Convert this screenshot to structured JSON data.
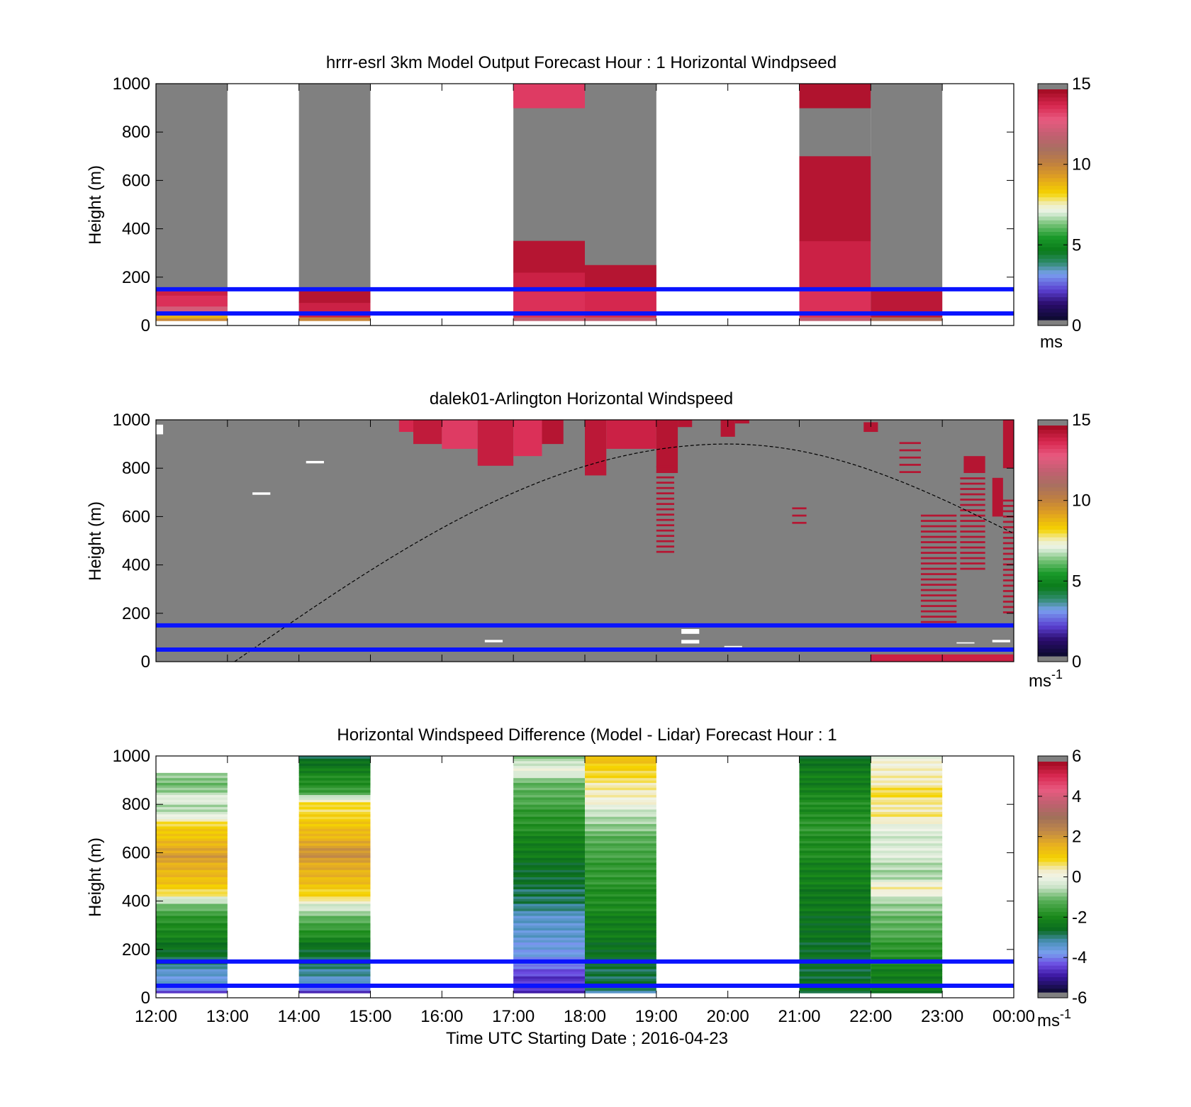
{
  "chart_data": [
    {
      "type": "heatmap",
      "title": "hrrr-esrl 3km Model Output   Forecast Hour : 1 Horizontal Windpseed",
      "xlabel": "",
      "ylabel": "Height (m)",
      "xlim": [
        "12:00",
        "00:00"
      ],
      "ylim": [
        0,
        1000
      ],
      "yticks": [
        0,
        200,
        400,
        600,
        800,
        1000
      ],
      "colorbar": {
        "min": 0,
        "max": 15,
        "ticks": [
          0,
          5,
          10,
          15
        ],
        "unit": "ms",
        "unit_sup": ""
      },
      "reference_lines_m": [
        50,
        150
      ],
      "reference_line_color": "#0a14ff",
      "columns": [
        {
          "time": "12:00-13:00",
          "bands": [
            {
              "from": 0,
              "to": 20,
              "value": 0
            },
            {
              "from": 20,
              "to": 30,
              "value": 10
            },
            {
              "from": 30,
              "to": 50,
              "value": 9
            },
            {
              "from": 50,
              "to": 80,
              "value": 12.5
            },
            {
              "from": 80,
              "to": 125,
              "value": 13.8
            },
            {
              "from": 125,
              "to": 150,
              "value": 14.2
            }
          ]
        },
        {
          "time": "14:00-15:00",
          "bands": [
            {
              "from": 0,
              "to": 20,
              "value": 0
            },
            {
              "from": 20,
              "to": 35,
              "value": 10
            },
            {
              "from": 35,
              "to": 95,
              "value": 14.2
            },
            {
              "from": 95,
              "to": 150,
              "value": 14.6
            }
          ]
        },
        {
          "time": "17:00-18:00",
          "bands": [
            {
              "from": 0,
              "to": 20,
              "value": 0
            },
            {
              "from": 20,
              "to": 35,
              "value": 12
            },
            {
              "from": 35,
              "to": 140,
              "value": 13.8
            },
            {
              "from": 140,
              "to": 220,
              "value": 14.2
            },
            {
              "from": 220,
              "to": 350,
              "value": 14.6
            },
            {
              "from": 900,
              "to": 1000,
              "value": 13.6
            }
          ]
        },
        {
          "time": "18:00-19:00",
          "bands": [
            {
              "from": 0,
              "to": 20,
              "value": 0
            },
            {
              "from": 20,
              "to": 35,
              "value": 12
            },
            {
              "from": 35,
              "to": 160,
              "value": 14
            },
            {
              "from": 160,
              "to": 250,
              "value": 14.6
            }
          ]
        },
        {
          "time": "21:00-22:00",
          "bands": [
            {
              "from": 0,
              "to": 20,
              "value": 0
            },
            {
              "from": 20,
              "to": 35,
              "value": 12
            },
            {
              "from": 35,
              "to": 150,
              "value": 13.8
            },
            {
              "from": 150,
              "to": 350,
              "value": 14.2
            },
            {
              "from": 350,
              "to": 700,
              "value": 14.6
            },
            {
              "from": 900,
              "to": 1000,
              "value": 14.7
            }
          ]
        },
        {
          "time": "22:00-23:00",
          "bands": [
            {
              "from": 0,
              "to": 20,
              "value": 0
            },
            {
              "from": 20,
              "to": 35,
              "value": 11
            },
            {
              "from": 35,
              "to": 150,
              "value": 14.5
            }
          ]
        }
      ],
      "note_values": "values above bands within each column shown as grey (below colour scale / no data); blank columns = no model data"
    },
    {
      "type": "heatmap",
      "title": "dalek01-Arlington  Horizontal Windspeed",
      "xlabel": "",
      "ylabel": "Height (m)",
      "xlim": [
        "12:00",
        "00:00"
      ],
      "ylim": [
        0,
        1000
      ],
      "yticks": [
        0,
        200,
        400,
        600,
        800,
        1000
      ],
      "colorbar": {
        "min": 0,
        "max": 15,
        "ticks": [
          0,
          5,
          10,
          15
        ],
        "unit": "ms",
        "unit_sup": "-1"
      },
      "reference_lines_m": [
        50,
        150
      ],
      "reference_line_color": "#0a14ff",
      "solar_curve": {
        "start_hour": 13.1,
        "peak_hour": 20.0,
        "peak_m": 900,
        "end_hour": 24.0,
        "end_m": 530
      },
      "patches": [
        {
          "h0": 22.0,
          "h1": 24.0,
          "m0": 0,
          "m1": 30,
          "value": 14.2
        },
        {
          "h0": 15.4,
          "h1": 15.6,
          "m0": 950,
          "m1": 1000,
          "value": 14.0
        },
        {
          "h0": 15.6,
          "h1": 16.0,
          "m0": 900,
          "m1": 1000,
          "value": 14.4
        },
        {
          "h0": 16.0,
          "h1": 16.5,
          "m0": 880,
          "m1": 1000,
          "value": 13.6
        },
        {
          "h0": 16.5,
          "h1": 17.0,
          "m0": 810,
          "m1": 1000,
          "value": 14.3
        },
        {
          "h0": 17.0,
          "h1": 17.4,
          "m0": 850,
          "m1": 1000,
          "value": 13.8
        },
        {
          "h0": 17.4,
          "h1": 17.7,
          "m0": 900,
          "m1": 1000,
          "value": 14.6
        },
        {
          "h0": 18.0,
          "h1": 18.3,
          "m0": 770,
          "m1": 1000,
          "value": 14.5
        },
        {
          "h0": 18.3,
          "h1": 19.0,
          "m0": 880,
          "m1": 1000,
          "value": 14.2
        },
        {
          "h0": 19.0,
          "h1": 19.3,
          "m0": 780,
          "m1": 1000,
          "value": 14.6
        },
        {
          "h0": 19.3,
          "h1": 19.5,
          "m0": 970,
          "m1": 1000,
          "value": 14.6
        },
        {
          "h0": 19.9,
          "h1": 20.1,
          "m0": 930,
          "m1": 1000,
          "value": 14.6
        },
        {
          "h0": 20.1,
          "h1": 20.3,
          "m0": 985,
          "m1": 1000,
          "value": 14.6
        },
        {
          "h0": 21.9,
          "h1": 22.1,
          "m0": 950,
          "m1": 990,
          "value": 14.6
        },
        {
          "h0": 23.3,
          "h1": 23.6,
          "m0": 780,
          "m1": 850,
          "value": 14.6
        },
        {
          "h0": 23.7,
          "h1": 23.85,
          "m0": 600,
          "m1": 760,
          "value": 14.6
        },
        {
          "h0": 23.85,
          "h1": 24.0,
          "m0": 800,
          "m1": 1000,
          "value": 14.6
        }
      ],
      "stripes": [
        {
          "h0": 19.0,
          "h1": 19.25,
          "from": 450,
          "to": 820,
          "step": 22,
          "value": 14.6
        },
        {
          "h0": 22.7,
          "h1": 23.2,
          "from": 160,
          "to": 620,
          "step": 22,
          "value": 14.6
        },
        {
          "h0": 23.25,
          "h1": 23.6,
          "from": 380,
          "to": 760,
          "step": 22,
          "value": 14.6
        },
        {
          "h0": 23.85,
          "h1": 24.0,
          "from": 200,
          "to": 680,
          "step": 22,
          "value": 14.6
        },
        {
          "h0": 22.4,
          "h1": 22.7,
          "from": 780,
          "to": 920,
          "step": 30,
          "value": 14.6
        },
        {
          "h0": 20.9,
          "h1": 21.1,
          "from": 570,
          "to": 630,
          "step": 30,
          "value": 14.6
        }
      ],
      "missing": [
        {
          "h0": 12.0,
          "h1": 12.1,
          "m0": 940,
          "m1": 980
        },
        {
          "h0": 14.1,
          "h1": 14.35,
          "m0": 820,
          "m1": 830
        },
        {
          "h0": 13.35,
          "h1": 13.6,
          "m0": 690,
          "m1": 700
        },
        {
          "h0": 16.6,
          "h1": 16.85,
          "m0": 80,
          "m1": 90
        },
        {
          "h0": 19.35,
          "h1": 19.6,
          "m0": 75,
          "m1": 90
        },
        {
          "h0": 19.35,
          "h1": 19.6,
          "m0": 115,
          "m1": 135
        },
        {
          "h0": 19.95,
          "h1": 20.2,
          "m0": 60,
          "m1": 65
        },
        {
          "h0": 23.2,
          "h1": 23.45,
          "m0": 75,
          "m1": 80
        },
        {
          "h0": 23.7,
          "h1": 23.95,
          "m0": 80,
          "m1": 90
        }
      ]
    },
    {
      "type": "heatmap",
      "title": "Horizontal Windspeed Difference (Model - Lidar) Forecast Hour : 1",
      "xlabel": "Time UTC  Starting Date ; 2016-04-23",
      "ylabel": "Height (m)",
      "xticks": [
        "12:00",
        "13:00",
        "14:00",
        "15:00",
        "16:00",
        "17:00",
        "18:00",
        "19:00",
        "20:00",
        "21:00",
        "22:00",
        "23:00",
        "00:00"
      ],
      "ylim": [
        0,
        1000
      ],
      "yticks": [
        0,
        200,
        400,
        600,
        800,
        1000
      ],
      "colorbar": {
        "min": -6,
        "max": 6,
        "ticks": [
          -6,
          -4,
          -2,
          0,
          2,
          4,
          6
        ],
        "unit": "ms",
        "unit_sup": "-1"
      },
      "reference_lines_m": [
        50,
        150
      ],
      "reference_line_color": "#0a14ff",
      "columns": [
        {
          "time": "12:00-13:00",
          "top": 930,
          "profile": [
            [
              20,
              -4.8
            ],
            [
              60,
              -3.8
            ],
            [
              100,
              -3.6
            ],
            [
              150,
              -3.0
            ],
            [
              200,
              -2.6
            ],
            [
              300,
              -2.0
            ],
            [
              370,
              -1.3
            ],
            [
              410,
              -0.4
            ],
            [
              430,
              0.8
            ],
            [
              500,
              1.4
            ],
            [
              580,
              2.0
            ],
            [
              650,
              1.5
            ],
            [
              720,
              0.8
            ],
            [
              760,
              -0.3
            ],
            [
              800,
              -0.8
            ],
            [
              820,
              0
            ],
            [
              860,
              -0.9
            ],
            [
              930,
              -1.0
            ]
          ]
        },
        {
          "time": "14:00-15:00",
          "top": 1000,
          "profile": [
            [
              20,
              -5.0
            ],
            [
              60,
              -3.8
            ],
            [
              100,
              -3.2
            ],
            [
              200,
              -2.7
            ],
            [
              280,
              -1.8
            ],
            [
              350,
              -0.8
            ],
            [
              390,
              -0.3
            ],
            [
              410,
              0.8
            ],
            [
              500,
              1.5
            ],
            [
              600,
              2.2
            ],
            [
              700,
              1.3
            ],
            [
              780,
              0.8
            ],
            [
              800,
              0.9
            ],
            [
              850,
              -1.5
            ],
            [
              900,
              -2.0
            ],
            [
              1000,
              -2.8
            ]
          ]
        },
        {
          "time": "17:00-18:00",
          "top": 1000,
          "profile": [
            [
              20,
              -5.0
            ],
            [
              80,
              -4.8
            ],
            [
              130,
              -4.2
            ],
            [
              200,
              -3.8
            ],
            [
              300,
              -3.6
            ],
            [
              360,
              -3.4
            ],
            [
              400,
              -3.0
            ],
            [
              500,
              -2.8
            ],
            [
              600,
              -2.4
            ],
            [
              700,
              -2.0
            ],
            [
              800,
              -1.5
            ],
            [
              900,
              -1.0
            ],
            [
              940,
              0
            ],
            [
              1000,
              -0.8
            ]
          ]
        },
        {
          "time": "18:00-19:00",
          "top": 1000,
          "profile": [
            [
              20,
              -3.5
            ],
            [
              50,
              -3.0
            ],
            [
              200,
              -2.6
            ],
            [
              400,
              -2.0
            ],
            [
              600,
              -1.5
            ],
            [
              700,
              -1.0
            ],
            [
              760,
              -0.5
            ],
            [
              800,
              0
            ],
            [
              850,
              0.4
            ],
            [
              950,
              0.9
            ],
            [
              1000,
              1.6
            ]
          ]
        },
        {
          "time": "21:00-22:00",
          "top": 1000,
          "profile": [
            [
              20,
              -2.8
            ],
            [
              300,
              -2.6
            ],
            [
              500,
              -2.3
            ],
            [
              700,
              -1.8
            ],
            [
              800,
              -2.0
            ],
            [
              1000,
              -2.6
            ]
          ]
        },
        {
          "time": "22:00-23:00",
          "top": 1000,
          "profile": [
            [
              20,
              -2.6
            ],
            [
              200,
              -1.8
            ],
            [
              300,
              -1.2
            ],
            [
              400,
              -0.8
            ],
            [
              450,
              0.6
            ],
            [
              500,
              -0.8
            ],
            [
              600,
              -0.3
            ],
            [
              700,
              -0.3
            ],
            [
              760,
              0.7
            ],
            [
              800,
              0.3
            ],
            [
              850,
              0.9
            ],
            [
              900,
              0.3
            ],
            [
              980,
              0.2
            ],
            [
              1000,
              0
            ]
          ]
        }
      ]
    }
  ]
}
